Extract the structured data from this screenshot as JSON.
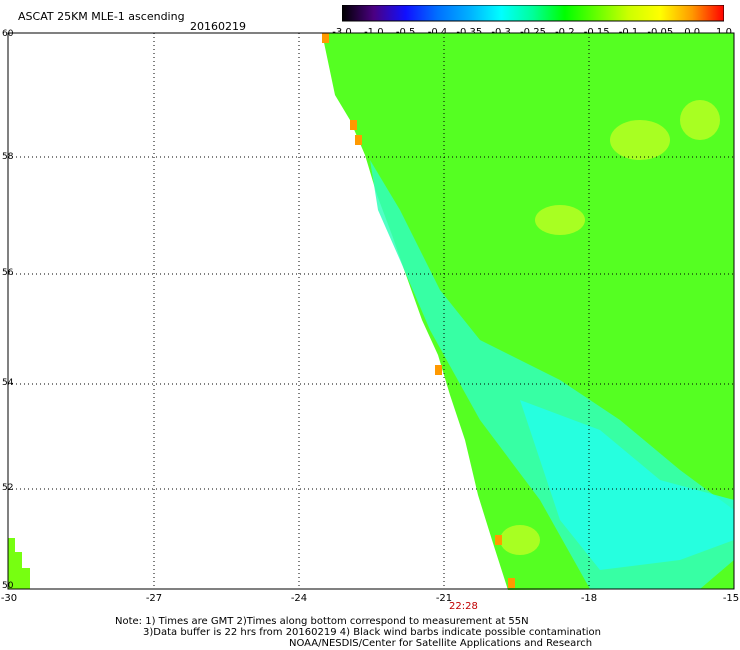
{
  "header": {
    "title": "ASCAT 25KM MLE-1 ascending",
    "date": "20160219"
  },
  "colorbar": {
    "labels": [
      "-3.0",
      "-1.0",
      "-0.5",
      "-0.4",
      "-0.35",
      "-0.3",
      "-0.25",
      "-0.2",
      "-0.15",
      "-0.1",
      "-0.05",
      "0.0",
      "1.0"
    ],
    "colors": [
      "#000000",
      "#4b0082",
      "#1010ff",
      "#0070ff",
      "#00b0ff",
      "#00ffff",
      "#00ff99",
      "#00ff00",
      "#66ff00",
      "#ccff00",
      "#ffff00",
      "#ff9900",
      "#ff0000"
    ]
  },
  "map": {
    "lat_labels": [
      "60",
      "58",
      "56",
      "54",
      "52",
      "50"
    ],
    "lon_labels": [
      "-30",
      "-27",
      "-24",
      "-21",
      "-18",
      "-15"
    ],
    "pass_time": "22:28",
    "lat_range": [
      50,
      60
    ],
    "lon_range": [
      -30,
      -15
    ]
  },
  "notes": {
    "line1": "Note: 1) Times are GMT 2)Times along bottom correspond to measurement at 55N",
    "line2": "3)Data buffer is 22 hrs from 20160219 4) Black wind barbs indicate possible contamination",
    "line3": "NOAA/NESDIS/Center for Satellite Applications and Research"
  }
}
